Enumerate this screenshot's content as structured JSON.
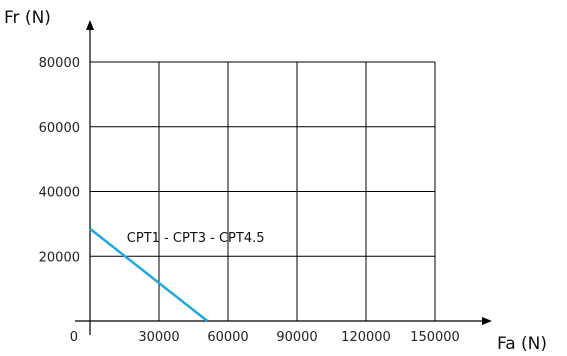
{
  "chart_data": {
    "type": "line",
    "xlabel": "Fa (N)",
    "ylabel": "Fr (N)",
    "xlim": [
      0,
      150000
    ],
    "ylim": [
      0,
      80000
    ],
    "x_ticks": [
      0,
      30000,
      60000,
      90000,
      120000,
      150000
    ],
    "x_tick_labels": [
      "0",
      "30000",
      "60000",
      "90000",
      "120000",
      "150000"
    ],
    "y_ticks": [
      20000,
      40000,
      60000,
      80000
    ],
    "y_tick_labels": [
      "20000",
      "40000",
      "60000",
      "80000"
    ],
    "grid": true,
    "series": [
      {
        "name": "CPT1 - CPT3 - CPT4.5",
        "color": "#1ea8e0",
        "x": [
          0,
          51000
        ],
        "y": [
          28500,
          0
        ]
      }
    ],
    "annotations": [
      {
        "text": "CPT1 - CPT3 - CPT4.5",
        "x": 16000,
        "y": 26000
      }
    ]
  }
}
